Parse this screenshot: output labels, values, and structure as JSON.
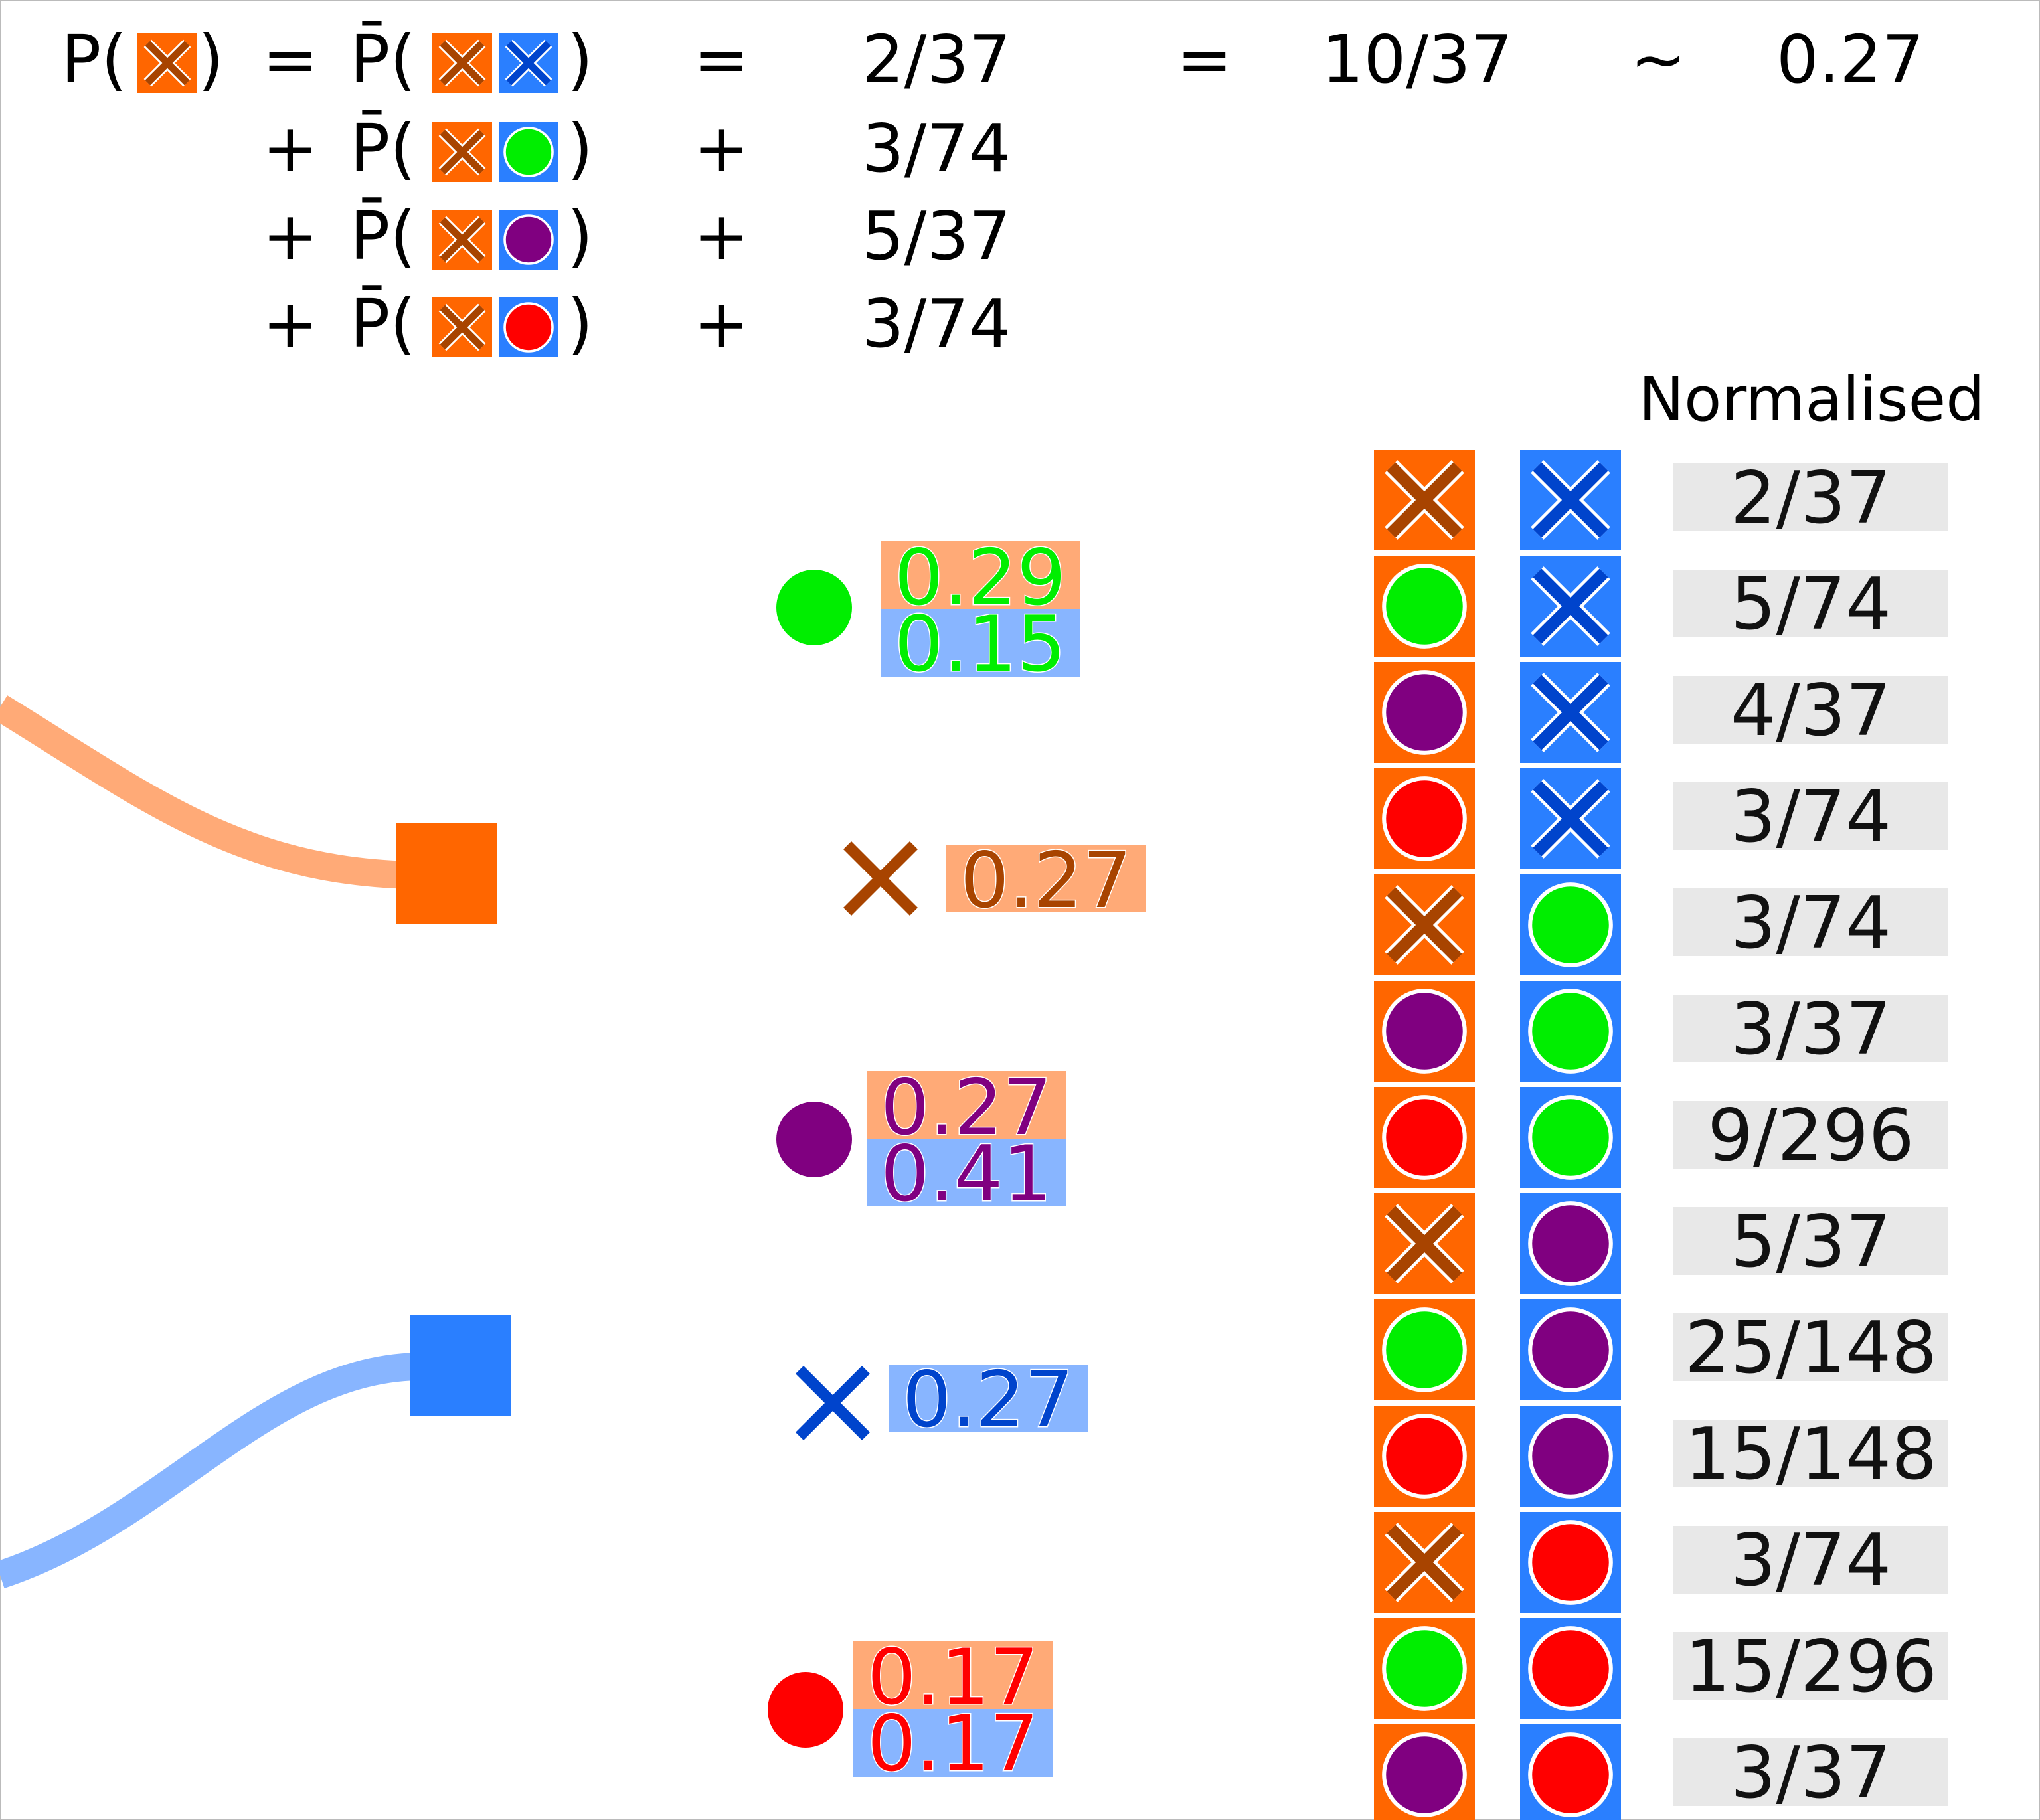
{
  "colors": {
    "orange": "#ff6600",
    "orange_light": "#ffaa77",
    "blue": "#2a7fff",
    "blue_light": "#88b5ff",
    "dark_orange_x": "#a84400",
    "dark_blue_x": "#0044cc",
    "green": "#00ee00",
    "purple": "#800080",
    "red": "#ff0000",
    "gray_box": "#e8e8e8"
  },
  "equation": {
    "lhs_p": "P(",
    "lhs_close": ")",
    "equals": "=",
    "pbar_open": "P̄(",
    "pbar_close": ")",
    "plus": "+",
    "rows": [
      {
        "op": "=",
        "orange_symbol": "x",
        "blue_symbol": "x",
        "rel": "=",
        "value": "2/37"
      },
      {
        "op": "+",
        "orange_symbol": "x",
        "blue_symbol": "green",
        "rel": "+",
        "value": "3/74"
      },
      {
        "op": "+",
        "orange_symbol": "x",
        "blue_symbol": "purple",
        "rel": "+",
        "value": "5/37"
      },
      {
        "op": "+",
        "orange_symbol": "x",
        "blue_symbol": "red",
        "rel": "+",
        "value": "3/74"
      }
    ],
    "eq2": "=",
    "total": "10/37",
    "approx": "~",
    "result": "0.27"
  },
  "outcome_probs": [
    {
      "symbol": "green",
      "orange": "0.29",
      "blue": "0.15"
    },
    {
      "symbol": "x",
      "orange": "0.27"
    },
    {
      "symbol": "purple",
      "orange": "0.27",
      "blue": "0.41"
    },
    {
      "symbol": "x",
      "blue": "0.27"
    },
    {
      "symbol": "red",
      "orange": "0.17",
      "blue": "0.17"
    }
  ],
  "table": {
    "header": "Normalised",
    "rows": [
      {
        "orange": "x",
        "blue": "x",
        "value": "2/37"
      },
      {
        "orange": "green",
        "blue": "x",
        "value": "5/74"
      },
      {
        "orange": "purple",
        "blue": "x",
        "value": "4/37"
      },
      {
        "orange": "red",
        "blue": "x",
        "value": "3/74"
      },
      {
        "orange": "x",
        "blue": "green",
        "value": "3/74"
      },
      {
        "orange": "purple",
        "blue": "green",
        "value": "3/37"
      },
      {
        "orange": "red",
        "blue": "green",
        "value": "9/296"
      },
      {
        "orange": "x",
        "blue": "purple",
        "value": "5/37"
      },
      {
        "orange": "green",
        "blue": "purple",
        "value": "25/148"
      },
      {
        "orange": "red",
        "blue": "purple",
        "value": "15/148"
      },
      {
        "orange": "x",
        "blue": "red",
        "value": "3/74"
      },
      {
        "orange": "green",
        "blue": "red",
        "value": "15/296"
      },
      {
        "orange": "purple",
        "blue": "red",
        "value": "3/37"
      }
    ]
  }
}
